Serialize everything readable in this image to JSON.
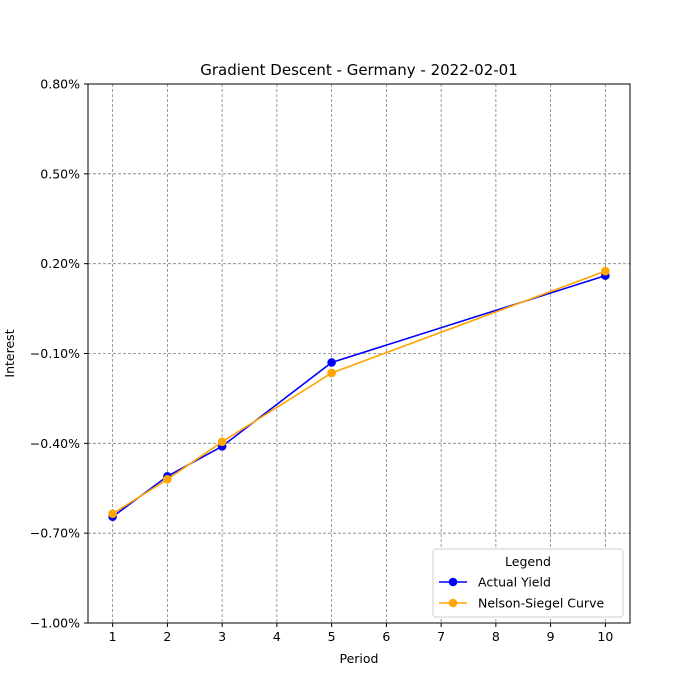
{
  "chart_data": {
    "type": "line",
    "title": "Gradient Descent - Germany - 2022-02-01",
    "xlabel": "Period",
    "ylabel": "Interest",
    "xlim": [
      0.55,
      10.45
    ],
    "ylim": [
      -1.0,
      0.8
    ],
    "x_ticks": [
      1,
      2,
      3,
      4,
      5,
      6,
      7,
      8,
      9,
      10
    ],
    "x_tick_labels": [
      "1",
      "2",
      "3",
      "4",
      "5",
      "6",
      "7",
      "8",
      "9",
      "10"
    ],
    "y_ticks": [
      -1.0,
      -0.7,
      -0.4,
      -0.1,
      0.2,
      0.5,
      0.8
    ],
    "y_tick_labels": [
      "−1.00%",
      "−0.70%",
      "−0.40%",
      "−0.10%",
      "0.20%",
      "0.50%",
      "0.80%"
    ],
    "grid": true,
    "legend": {
      "title": "Legend",
      "position": "bottom-right"
    },
    "series": [
      {
        "name": "Actual Yield",
        "color": "#0000ff",
        "marker": "circle",
        "x": [
          1,
          2,
          3,
          5,
          10
        ],
        "y": [
          -0.645,
          -0.51,
          -0.41,
          -0.13,
          0.16
        ]
      },
      {
        "name": "Nelson-Siegel Curve",
        "color": "#ffa500",
        "marker": "circle",
        "x": [
          1,
          2,
          3,
          5,
          10
        ],
        "y": [
          -0.635,
          -0.52,
          -0.395,
          -0.165,
          0.175
        ]
      }
    ]
  }
}
